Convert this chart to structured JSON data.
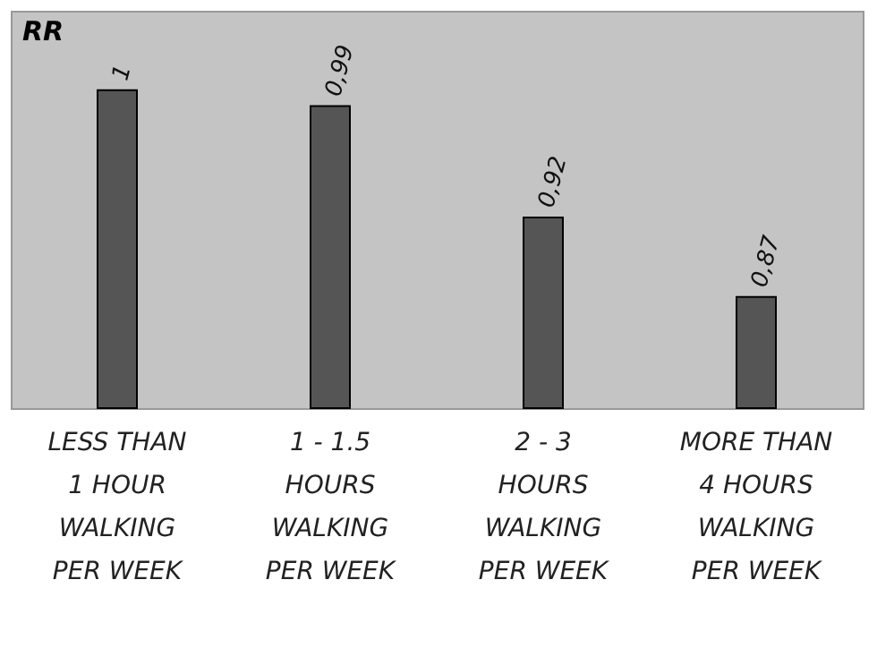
{
  "chart_data": {
    "type": "bar",
    "ylabel": "RR",
    "categories": [
      "LESS THAN 1 HOUR WALKING PER WEEK",
      "1 - 1.5 HOURS WALKING PER WEEK",
      "2 - 3 HOURS WALKING PER WEEK",
      "MORE THAN 4 HOURS WALKING PER WEEK"
    ],
    "values": [
      1,
      0.99,
      0.92,
      0.87
    ],
    "value_labels": [
      "1",
      "0,99",
      "0,92",
      "0,87"
    ],
    "color": "#555555",
    "ylim": [
      0.8,
      1.05
    ],
    "tick_labels": "x",
    "grid": false
  }
}
